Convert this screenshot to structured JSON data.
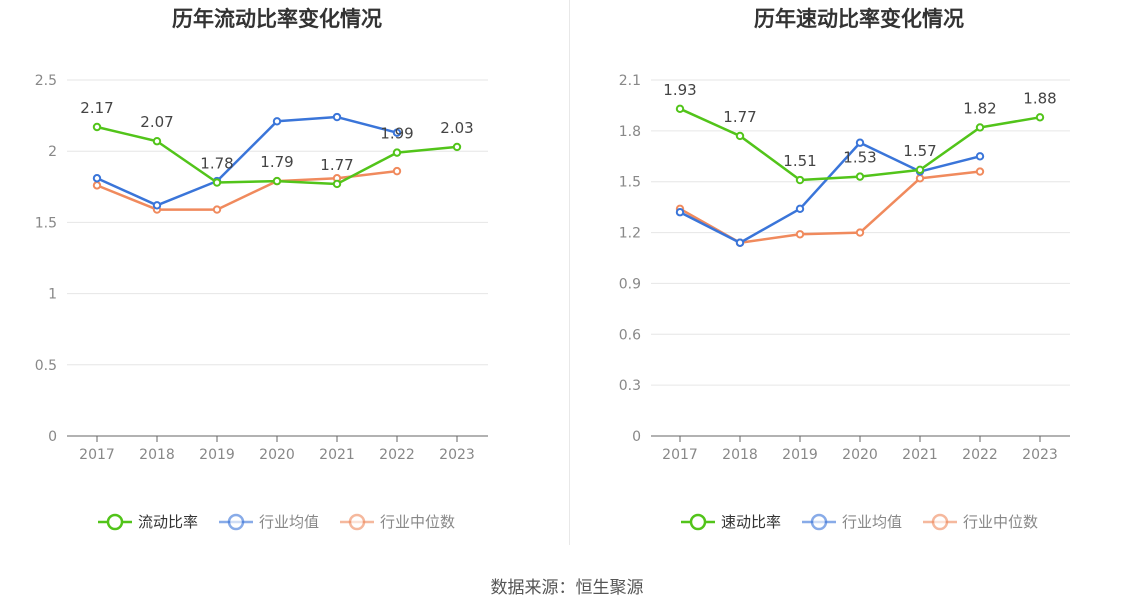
{
  "chart_data": [
    {
      "type": "line",
      "title": "历年流动比率变化情况",
      "categories": [
        "2017",
        "2018",
        "2019",
        "2020",
        "2021",
        "2022",
        "2023"
      ],
      "ylim": [
        0,
        2.5
      ],
      "yticks": [
        "0",
        "0.5",
        "1",
        "1.5",
        "2",
        "2.5"
      ],
      "ytick_values": [
        0,
        0.5,
        1,
        1.5,
        2,
        2.5
      ],
      "grid": true,
      "legend_position": "bottom",
      "series": [
        {
          "name": "流动比率",
          "color": "#52c41a",
          "values": [
            2.17,
            2.07,
            1.78,
            1.79,
            1.77,
            1.99,
            2.03
          ],
          "labels": [
            "2.17",
            "2.07",
            "1.78",
            "1.79",
            "1.77",
            "1.99",
            "2.03"
          ]
        },
        {
          "name": "行业均值",
          "color": "#3a75d9",
          "values": [
            1.81,
            1.62,
            1.79,
            2.21,
            2.24,
            2.13,
            null
          ]
        },
        {
          "name": "行业中位数",
          "color": "#f08a5d",
          "values": [
            1.76,
            1.59,
            1.59,
            1.79,
            1.81,
            1.86,
            null
          ]
        }
      ]
    },
    {
      "type": "line",
      "title": "历年速动比率变化情况",
      "categories": [
        "2017",
        "2018",
        "2019",
        "2020",
        "2021",
        "2022",
        "2023"
      ],
      "ylim": [
        0,
        2.1
      ],
      "yticks": [
        "0",
        "0.3",
        "0.6",
        "0.9",
        "1.2",
        "1.5",
        "1.8",
        "2.1"
      ],
      "ytick_values": [
        0,
        0.3,
        0.6,
        0.9,
        1.2,
        1.5,
        1.8,
        2.1
      ],
      "grid": true,
      "legend_position": "bottom",
      "series": [
        {
          "name": "速动比率",
          "color": "#52c41a",
          "values": [
            1.93,
            1.77,
            1.51,
            1.53,
            1.57,
            1.82,
            1.88
          ],
          "labels": [
            "1.93",
            "1.77",
            "1.51",
            "1.53",
            "1.57",
            "1.82",
            "1.88"
          ]
        },
        {
          "name": "行业均值",
          "color": "#3a75d9",
          "values": [
            1.32,
            1.14,
            1.34,
            1.73,
            1.56,
            1.65,
            null
          ]
        },
        {
          "name": "行业中位数",
          "color": "#f08a5d",
          "values": [
            1.34,
            1.14,
            1.19,
            1.2,
            1.52,
            1.56,
            null
          ]
        }
      ]
    }
  ],
  "footer": {
    "source": "数据来源：恒生聚源"
  }
}
